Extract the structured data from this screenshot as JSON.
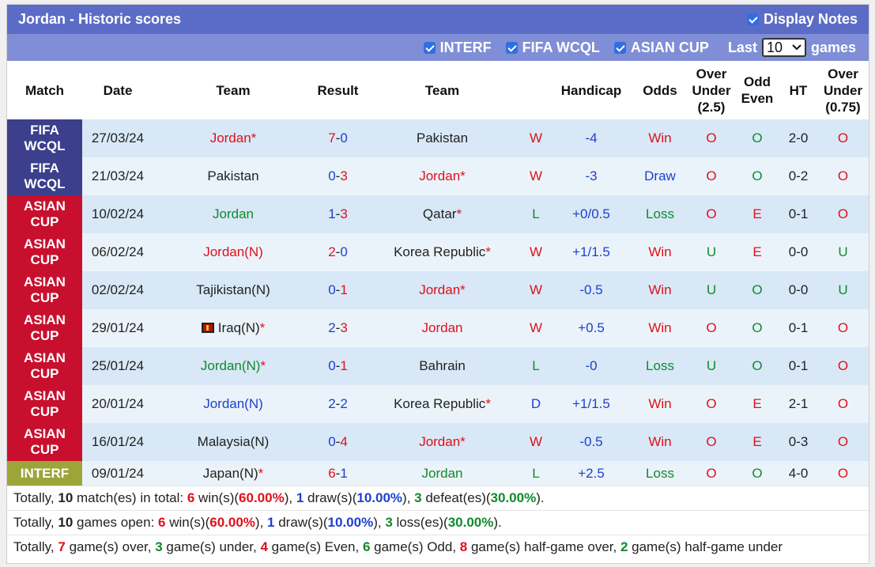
{
  "header": {
    "title": "Jordan - Historic scores",
    "display_notes": "Display Notes"
  },
  "filters": {
    "interf": "INTERF",
    "wcql": "FIFA WCQL",
    "asian": "ASIAN CUP",
    "last_label": "Last",
    "last_value": "10",
    "games_label": "games"
  },
  "columns": {
    "match": "Match",
    "date": "Date",
    "team1": "Team",
    "result": "Result",
    "team2": "Team",
    "handicap": "Handicap",
    "odds": "Odds",
    "ou": "Over Under (2.5)",
    "oe": "Odd Even",
    "ht": "HT",
    "ou2": "Over Under (0.75)"
  },
  "colors": {
    "wcql": "#3b3f8c",
    "asian": "#c8102e",
    "interf": "#9da43a",
    "win": "#e0101a",
    "loss": "#0f8a2b",
    "draw": "#1d3fd1"
  },
  "rows": [
    {
      "league": "FIFA WCQL",
      "lclass": "wcql",
      "date": "27/03/24",
      "home": "Jordan",
      "home_star": "*",
      "home_class": "red",
      "s1": "7",
      "s1c": "red",
      "s2": "0",
      "s2c": "blue",
      "away": "Pakistan",
      "away_star": "",
      "away_class": "dk",
      "wl": "W",
      "wlc": "red",
      "hc": "-4",
      "odds": "Win",
      "oddsc": "red",
      "ou": "O",
      "ouc": "red",
      "oe": "O",
      "oec": "green",
      "ht": "2-0",
      "ou2": "O",
      "ou2c": "red",
      "flag": false
    },
    {
      "league": "FIFA WCQL",
      "lclass": "wcql",
      "date": "21/03/24",
      "home": "Pakistan",
      "home_star": "",
      "home_class": "dk",
      "s1": "0",
      "s1c": "blue",
      "s2": "3",
      "s2c": "red",
      "away": "Jordan",
      "away_star": "*",
      "away_class": "red",
      "wl": "W",
      "wlc": "red",
      "hc": "-3",
      "odds": "Draw",
      "oddsc": "blue",
      "ou": "O",
      "ouc": "red",
      "oe": "O",
      "oec": "green",
      "ht": "0-2",
      "ou2": "O",
      "ou2c": "red",
      "flag": false
    },
    {
      "league": "ASIAN CUP",
      "lclass": "asian",
      "date": "10/02/24",
      "home": "Jordan",
      "home_star": "",
      "home_class": "green",
      "s1": "1",
      "s1c": "blue",
      "s2": "3",
      "s2c": "red",
      "away": "Qatar",
      "away_star": "*",
      "away_class": "dk",
      "wl": "L",
      "wlc": "green",
      "hc": "+0/0.5",
      "odds": "Loss",
      "oddsc": "green",
      "ou": "O",
      "ouc": "red",
      "oe": "E",
      "oec": "red",
      "ht": "0-1",
      "ou2": "O",
      "ou2c": "red",
      "flag": false
    },
    {
      "league": "ASIAN CUP",
      "lclass": "asian",
      "date": "06/02/24",
      "home": "Jordan(N)",
      "home_star": "",
      "home_class": "red",
      "s1": "2",
      "s1c": "red",
      "s2": "0",
      "s2c": "blue",
      "away": "Korea Republic",
      "away_star": "*",
      "away_class": "dk",
      "wl": "W",
      "wlc": "red",
      "hc": "+1/1.5",
      "odds": "Win",
      "oddsc": "red",
      "ou": "U",
      "ouc": "green",
      "oe": "E",
      "oec": "red",
      "ht": "0-0",
      "ou2": "U",
      "ou2c": "green",
      "flag": false
    },
    {
      "league": "ASIAN CUP",
      "lclass": "asian",
      "date": "02/02/24",
      "home": "Tajikistan(N)",
      "home_star": "",
      "home_class": "dk",
      "s1": "0",
      "s1c": "blue",
      "s2": "1",
      "s2c": "red",
      "away": "Jordan",
      "away_star": "*",
      "away_class": "red",
      "wl": "W",
      "wlc": "red",
      "hc": "-0.5",
      "odds": "Win",
      "oddsc": "red",
      "ou": "U",
      "ouc": "green",
      "oe": "O",
      "oec": "green",
      "ht": "0-0",
      "ou2": "U",
      "ou2c": "green",
      "flag": false
    },
    {
      "league": "ASIAN CUP",
      "lclass": "asian",
      "date": "29/01/24",
      "home": "Iraq(N)",
      "home_star": "*",
      "home_class": "dk",
      "s1": "2",
      "s1c": "blue",
      "s2": "3",
      "s2c": "red",
      "away": "Jordan",
      "away_star": "",
      "away_class": "red",
      "wl": "W",
      "wlc": "red",
      "hc": "+0.5",
      "odds": "Win",
      "oddsc": "red",
      "ou": "O",
      "ouc": "red",
      "oe": "O",
      "oec": "green",
      "ht": "0-1",
      "ou2": "O",
      "ou2c": "red",
      "flag": true
    },
    {
      "league": "ASIAN CUP",
      "lclass": "asian",
      "date": "25/01/24",
      "home": "Jordan(N)",
      "home_star": "*",
      "home_class": "green",
      "s1": "0",
      "s1c": "blue",
      "s2": "1",
      "s2c": "red",
      "away": "Bahrain",
      "away_star": "",
      "away_class": "dk",
      "wl": "L",
      "wlc": "green",
      "hc": "-0",
      "odds": "Loss",
      "oddsc": "green",
      "ou": "U",
      "ouc": "green",
      "oe": "O",
      "oec": "green",
      "ht": "0-1",
      "ou2": "O",
      "ou2c": "red",
      "flag": false
    },
    {
      "league": "ASIAN CUP",
      "lclass": "asian",
      "date": "20/01/24",
      "home": "Jordan(N)",
      "home_star": "",
      "home_class": "blue",
      "s1": "2",
      "s1c": "blue",
      "s2": "2",
      "s2c": "blue",
      "away": "Korea Republic",
      "away_star": "*",
      "away_class": "dk",
      "wl": "D",
      "wlc": "blue",
      "hc": "+1/1.5",
      "odds": "Win",
      "oddsc": "red",
      "ou": "O",
      "ouc": "red",
      "oe": "E",
      "oec": "red",
      "ht": "2-1",
      "ou2": "O",
      "ou2c": "red",
      "flag": false
    },
    {
      "league": "ASIAN CUP",
      "lclass": "asian",
      "date": "16/01/24",
      "home": "Malaysia(N)",
      "home_star": "",
      "home_class": "dk",
      "s1": "0",
      "s1c": "blue",
      "s2": "4",
      "s2c": "red",
      "away": "Jordan",
      "away_star": "*",
      "away_class": "red",
      "wl": "W",
      "wlc": "red",
      "hc": "-0.5",
      "odds": "Win",
      "oddsc": "red",
      "ou": "O",
      "ouc": "red",
      "oe": "E",
      "oec": "red",
      "ht": "0-3",
      "ou2": "O",
      "ou2c": "red",
      "flag": false
    },
    {
      "league": "INTERF",
      "lclass": "interf",
      "date": "09/01/24",
      "home": "Japan(N)",
      "home_star": "*",
      "home_class": "dk",
      "s1": "6",
      "s1c": "red",
      "s2": "1",
      "s2c": "blue",
      "away": "Jordan",
      "away_star": "",
      "away_class": "green",
      "wl": "L",
      "wlc": "green",
      "hc": "+2.5",
      "odds": "Loss",
      "oddsc": "green",
      "ou": "O",
      "ouc": "red",
      "oe": "O",
      "oec": "green",
      "ht": "4-0",
      "ou2": "O",
      "ou2c": "red",
      "flag": false
    }
  ],
  "summary": [
    [
      {
        "t": "Totally, ",
        "c": "dk",
        "b": false
      },
      {
        "t": "10",
        "c": "dk",
        "b": true
      },
      {
        "t": " match(es) in total: ",
        "c": "dk",
        "b": false
      },
      {
        "t": "6",
        "c": "red",
        "b": true
      },
      {
        "t": " win(s)(",
        "c": "dk",
        "b": false
      },
      {
        "t": "60.00%",
        "c": "red",
        "b": true
      },
      {
        "t": "), ",
        "c": "dk",
        "b": false
      },
      {
        "t": "1",
        "c": "blue",
        "b": true
      },
      {
        "t": " draw(s)(",
        "c": "dk",
        "b": false
      },
      {
        "t": "10.00%",
        "c": "blue",
        "b": true
      },
      {
        "t": "), ",
        "c": "dk",
        "b": false
      },
      {
        "t": "3",
        "c": "green",
        "b": true
      },
      {
        "t": " defeat(es)(",
        "c": "dk",
        "b": false
      },
      {
        "t": "30.00%",
        "c": "green",
        "b": true
      },
      {
        "t": ").",
        "c": "dk",
        "b": false
      }
    ],
    [
      {
        "t": "Totally, ",
        "c": "dk",
        "b": false
      },
      {
        "t": "10",
        "c": "dk",
        "b": true
      },
      {
        "t": " games open: ",
        "c": "dk",
        "b": false
      },
      {
        "t": "6",
        "c": "red",
        "b": true
      },
      {
        "t": " win(s)(",
        "c": "dk",
        "b": false
      },
      {
        "t": "60.00%",
        "c": "red",
        "b": true
      },
      {
        "t": "), ",
        "c": "dk",
        "b": false
      },
      {
        "t": "1",
        "c": "blue",
        "b": true
      },
      {
        "t": " draw(s)(",
        "c": "dk",
        "b": false
      },
      {
        "t": "10.00%",
        "c": "blue",
        "b": true
      },
      {
        "t": "), ",
        "c": "dk",
        "b": false
      },
      {
        "t": "3",
        "c": "green",
        "b": true
      },
      {
        "t": " loss(es)(",
        "c": "dk",
        "b": false
      },
      {
        "t": "30.00%",
        "c": "green",
        "b": true
      },
      {
        "t": ").",
        "c": "dk",
        "b": false
      }
    ],
    [
      {
        "t": "Totally, ",
        "c": "dk",
        "b": false
      },
      {
        "t": "7",
        "c": "red",
        "b": true
      },
      {
        "t": " game(s) over, ",
        "c": "dk",
        "b": false
      },
      {
        "t": "3",
        "c": "green",
        "b": true
      },
      {
        "t": " game(s) under, ",
        "c": "dk",
        "b": false
      },
      {
        "t": "4",
        "c": "red",
        "b": true
      },
      {
        "t": " game(s) Even, ",
        "c": "dk",
        "b": false
      },
      {
        "t": "6",
        "c": "green",
        "b": true
      },
      {
        "t": " game(s) Odd, ",
        "c": "dk",
        "b": false
      },
      {
        "t": "8",
        "c": "red",
        "b": true
      },
      {
        "t": " game(s) half-game over, ",
        "c": "dk",
        "b": false
      },
      {
        "t": "2",
        "c": "green",
        "b": true
      },
      {
        "t": " game(s) half-game under",
        "c": "dk",
        "b": false
      }
    ]
  ]
}
